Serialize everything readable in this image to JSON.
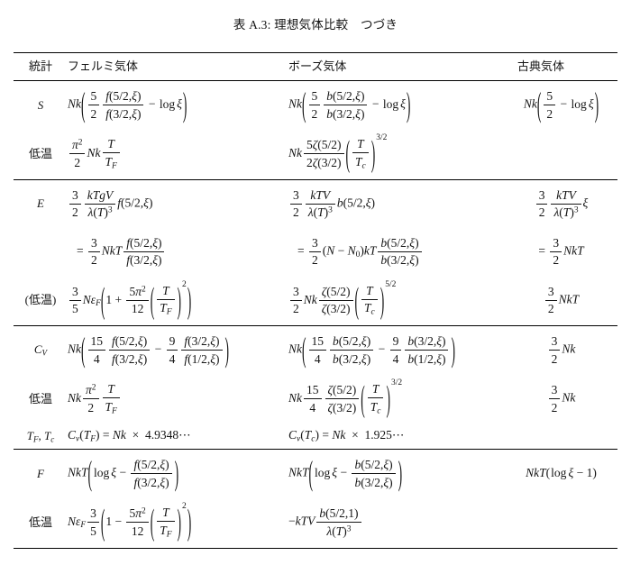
{
  "title": "表 A.3: 理想気体比較　つづき",
  "colors": {
    "background": "#ffffff",
    "text": "#141414",
    "rule": "#000000"
  },
  "table": {
    "headers": [
      "統計",
      "フェルミ気体",
      "ボーズ気体",
      "古典気体"
    ],
    "sections": [
      {
        "rows": [
          {
            "label": "S",
            "cells": [
              "Nk\\p{\\frac{5}{2}\\frac{f(5/2,\\xi)}{f(3/2,\\xi)} - \\log\\xi}",
              "Nk\\p{\\frac{5}{2}\\frac{b(5/2,\\xi)}{b(3/2,\\xi)} - \\log\\xi}",
              "Nk\\p{\\frac{5}{2} - \\log\\xi}"
            ]
          },
          {
            "label": "低温",
            "cells": [
              "\\frac{\\pi^{2}}{2}Nk\\frac{T}{T_{F}}",
              "Nk\\frac{5\\zeta(5/2)}{2\\zeta(3/2)}\\p{\\frac{T}{T_{c}}}^{3/2}",
              ""
            ]
          }
        ]
      },
      {
        "rows": [
          {
            "label": "E",
            "cells": [
              "\\frac{3}{2}\\frac{kTgV}{\\lambda(T)^{3}}f(5/2,\\xi)",
              "\\frac{3}{2}\\frac{kTV}{\\lambda(T)^{3}}b(5/2,\\xi)",
              "\\frac{3}{2}\\frac{kTV}{\\lambda(T)^{3}}\\xi"
            ]
          },
          {
            "label": "",
            "indent": true,
            "cells": [
              "= \\frac{3}{2}NkT\\frac{f(5/2,\\xi)}{f(3/2,\\xi)}",
              "= \\frac{3}{2}(N - N_{0})kT\\frac{b(5/2,\\xi)}{b(3/2,\\xi)}",
              "= \\frac{3}{2}NkT"
            ]
          },
          {
            "label": "(低温)",
            "cells": [
              "\\frac{3}{5}N\\eps_{F}\\p{1 + \\frac{5\\pi^{2}}{12}\\p{\\frac{T}{T_{F}}}^{2}}",
              "\\frac{3}{2}Nk\\frac{\\zeta(5/2)}{\\zeta(3/2)}\\p{\\frac{T}{T_{c}}}^{5/2}",
              "\\frac{3}{2}NkT"
            ]
          }
        ]
      },
      {
        "rows": [
          {
            "label": "C_{V}",
            "cells": [
              "Nk\\p{\\frac{15}{4}\\frac{f(5/2,\\xi)}{f(3/2,\\xi)} - \\frac{9}{4}\\frac{f(3/2,\\xi)}{f(1/2,\\xi)}}",
              "Nk\\p{\\frac{15}{4}\\frac{b(5/2,\\xi)}{b(3/2,\\xi)} - \\frac{9}{4}\\frac{b(3/2,\\xi)}{b(1/2,\\xi)}}",
              "\\frac{3}{2}Nk"
            ]
          },
          {
            "label": "低温",
            "cells": [
              "Nk\\frac{\\pi^{2}}{2}\\frac{T}{T_{F}}",
              "Nk\\frac{15}{4}\\frac{\\zeta(5/2)}{\\zeta(3/2)}\\p{\\frac{T}{T_{c}}}^{3/2}",
              "\\frac{3}{2}Nk"
            ]
          },
          {
            "label": "T_{F}, T_{c}",
            "compact": true,
            "cells": [
              "C_{v}(T_{F}) = Nk \\times 4.9348\\cdots",
              "C_{v}(T_{c}) = Nk \\times 1.925\\cdots",
              ""
            ]
          }
        ]
      },
      {
        "rows": [
          {
            "label": "F",
            "cells": [
              "NkT\\p{\\log\\xi - \\frac{f(5/2,\\xi)}{f(3/2,\\xi)}}",
              "NkT\\p{\\log\\xi - \\frac{b(5/2,\\xi)}{b(3/2,\\xi)}}",
              "NkT(\\log\\xi - 1)"
            ]
          },
          {
            "label": "低温",
            "cells": [
              "N\\eps_{F}\\frac{3}{5}\\p{1 - \\frac{5\\pi^{2}}{12}\\p{\\frac{T}{T_{F}}}^{2}}",
              "-kTV\\frac{b(5/2,1)}{\\lambda(T)^{3}}",
              ""
            ]
          }
        ]
      }
    ]
  }
}
